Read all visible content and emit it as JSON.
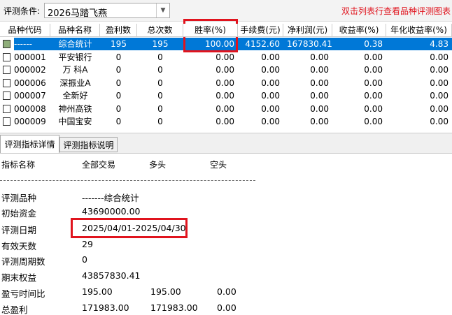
{
  "toolbar": {
    "condition_label": "评测条件:",
    "condition_value": "2026马踏飞燕",
    "hint": "双击列表行查看品种评测图表"
  },
  "table": {
    "columns": [
      "品种代码",
      "品种名称",
      "盈利数",
      "总次数",
      "胜率(%)",
      "手续费(元)",
      "净利润(元)",
      "收益率(%)",
      "年化收益率(%)"
    ],
    "rows": [
      [
        "------",
        "综合统计",
        "195",
        "195",
        "100.00",
        "4152.60",
        "167830.41",
        "0.38",
        "4.83"
      ],
      [
        "000001",
        "平安银行",
        "0",
        "0",
        "0.00",
        "0.00",
        "0.00",
        "0.00",
        "0.00"
      ],
      [
        "000002",
        "万 科A",
        "0",
        "0",
        "0.00",
        "0.00",
        "0.00",
        "0.00",
        "0.00"
      ],
      [
        "000006",
        "深振业A",
        "0",
        "0",
        "0.00",
        "0.00",
        "0.00",
        "0.00",
        "0.00"
      ],
      [
        "000007",
        "全新好",
        "0",
        "0",
        "0.00",
        "0.00",
        "0.00",
        "0.00",
        "0.00"
      ],
      [
        "000008",
        "神州高铁",
        "0",
        "0",
        "0.00",
        "0.00",
        "0.00",
        "0.00",
        "0.00"
      ],
      [
        "000009",
        "中国宝安",
        "0",
        "0",
        "0.00",
        "0.00",
        "0.00",
        "0.00",
        "0.00"
      ]
    ]
  },
  "tabs": [
    "评测指标详情",
    "评测指标说明"
  ],
  "details": {
    "columns": [
      "指标名称",
      "全部交易",
      "多头",
      "空头"
    ],
    "rows": [
      [
        "评测品种",
        "-------综合统计"
      ],
      [
        "初始资金",
        "43690000.00"
      ],
      [
        "评测日期",
        "2025/04/01-2025/04/30"
      ],
      [
        "有效天数",
        "29"
      ],
      [
        "评测周期数",
        "0"
      ],
      [
        "期末权益",
        "43857830.41"
      ],
      [
        "盈亏时间比",
        "195.00",
        "195.00",
        "0.00"
      ],
      [
        "总盈利",
        "171983.00",
        "171983.00",
        "0.00"
      ]
    ]
  }
}
